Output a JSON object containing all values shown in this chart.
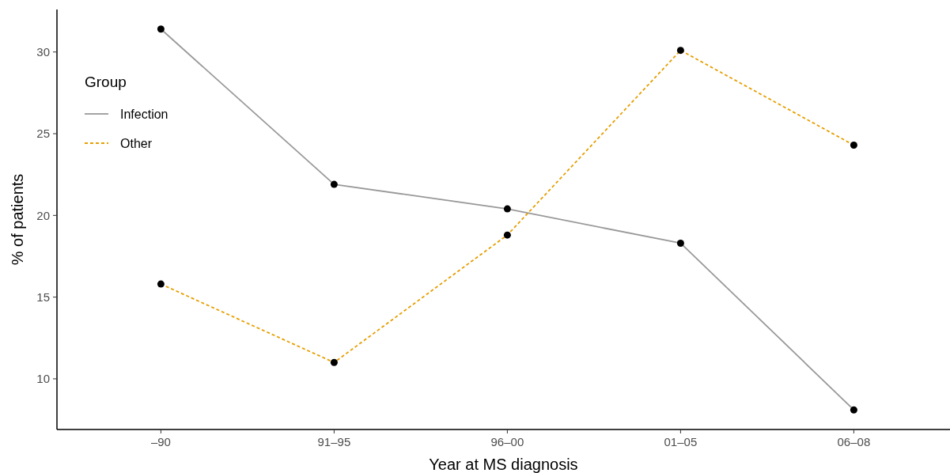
{
  "chart_data": {
    "type": "line",
    "xlabel": "Year at MS diagnosis",
    "ylabel": "% of patients",
    "legend_title": "Group",
    "categories": [
      "–90",
      "91–95",
      "96–00",
      "01–05",
      "06–08"
    ],
    "series": [
      {
        "name": "Infection",
        "color": "#999999",
        "line_style": "solid",
        "values": [
          31.4,
          21.9,
          20.4,
          18.3,
          8.1
        ]
      },
      {
        "name": "Other",
        "color": "#e69f00",
        "line_style": "dashed",
        "values": [
          15.8,
          11.0,
          18.8,
          30.1,
          24.3
        ]
      }
    ],
    "marker": "circle",
    "ylim": [
      6.9,
      32.6
    ],
    "yticks": [
      10,
      15,
      20,
      25,
      30
    ],
    "grid": false,
    "legend": "top left"
  }
}
